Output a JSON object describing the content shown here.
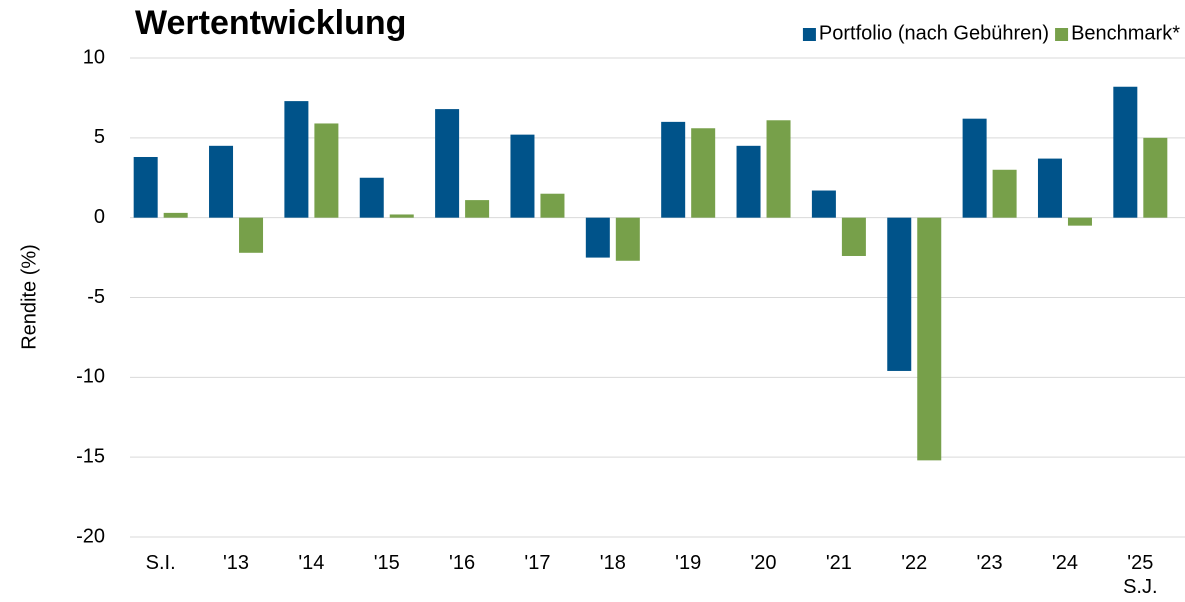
{
  "chart_data": {
    "type": "bar",
    "title": "Wertentwicklung",
    "y_label": "Rendite (%)",
    "categories": [
      "S.I.",
      "'13",
      "'14",
      "'15",
      "'16",
      "'17",
      "'18",
      "'19",
      "'20",
      "'21",
      "'22",
      "'23",
      "'24",
      "'25\nS.J."
    ],
    "series": [
      {
        "name": "Portfolio (nach Gebühren)",
        "color": "#00538a",
        "values": [
          3.8,
          4.5,
          7.3,
          2.5,
          6.8,
          5.2,
          -2.5,
          6.0,
          4.5,
          1.7,
          -9.6,
          6.2,
          3.7,
          8.2
        ]
      },
      {
        "name": "Benchmark*",
        "color": "#77a04a",
        "values": [
          0.3,
          -2.2,
          5.9,
          0.2,
          1.1,
          1.5,
          -2.7,
          5.6,
          6.1,
          -2.4,
          -15.2,
          3.0,
          -0.5,
          5.0
        ]
      }
    ],
    "ylim": [
      -20,
      10
    ],
    "yticks": [
      -20,
      -15,
      -10,
      -5,
      0,
      5,
      10
    ],
    "grid": true,
    "legend": "top-right"
  }
}
